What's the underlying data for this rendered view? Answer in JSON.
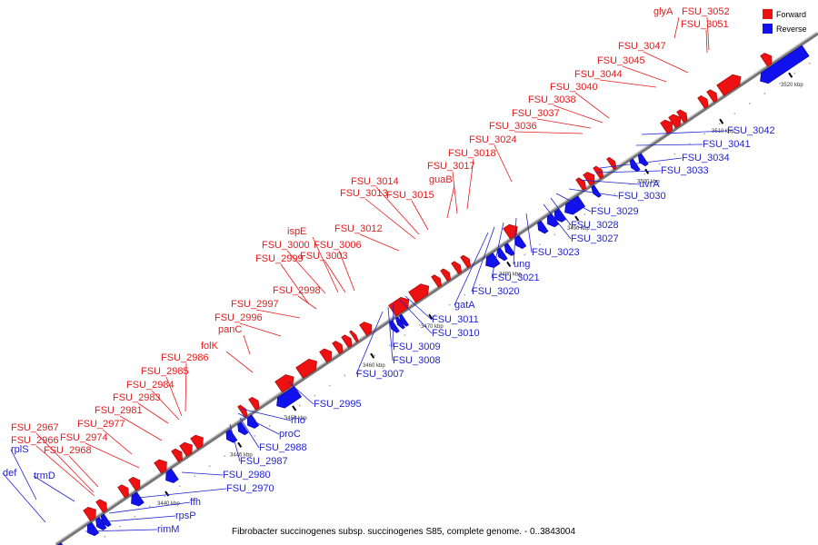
{
  "caption": "Fibrobacter succinogenes subsp. succinogenes S85, complete genome. - 0..3843004",
  "legend": [
    {
      "label": "Forward",
      "color": "#ee1111"
    },
    {
      "label": "Reverse",
      "color": "#1111ee"
    }
  ],
  "colors": {
    "forward": "#ee1111",
    "reverse": "#1111ee",
    "backbone": "#777777"
  },
  "ticks": [
    "3440 kbp",
    "3446 kbp",
    "3450 kbp",
    "3460 kbp",
    "3470 kbp",
    "3480 kbp",
    "3490 kbp",
    "3500 kbp",
    "3510 kbp",
    "3520 kbp"
  ],
  "forward_labels": [
    "glyA",
    "FSU_3052",
    "FSU_3051",
    "FSU_3047",
    "FSU_3045",
    "FSU_3044",
    "FSU_3040",
    "FSU_3038",
    "FSU_3037",
    "FSU_3036",
    "FSU_3024",
    "FSU_3018",
    "FSU_3017",
    "guaB",
    "FSU_3014",
    "FSU_3013",
    "FSU_3015",
    "FSU_3012",
    "ispE",
    "FSU_3000",
    "FSU_3006",
    "FSU_3003",
    "FSU_2999",
    "FSU_2998",
    "FSU_2997",
    "FSU_2996",
    "panC",
    "folK",
    "FSU_2986",
    "FSU_2985",
    "FSU_2984",
    "FSU_2983",
    "FSU_2981",
    "FSU_2977",
    "FSU_2967",
    "FSU_2966",
    "FSU_2974",
    "FSU_2968"
  ],
  "reverse_labels": [
    "FSU_3042",
    "FSU_3041",
    "FSU_3034",
    "FSU_3033",
    "uvrA",
    "FSU_3030",
    "FSU_3029",
    "FSU_3028",
    "FSU_3027",
    "FSU_3023",
    "ung",
    "FSU_3021",
    "FSU_3020",
    "gatA",
    "FSU_3011",
    "FSU_3010",
    "FSU_3009",
    "FSU_3008",
    "FSU_3007",
    "FSU_2995",
    "rho",
    "proC",
    "FSU_2988",
    "FSU_2987",
    "FSU_2980",
    "FSU_2970",
    "ffh",
    "rpsP",
    "rimM",
    "rplS",
    "def",
    "trmD"
  ]
}
